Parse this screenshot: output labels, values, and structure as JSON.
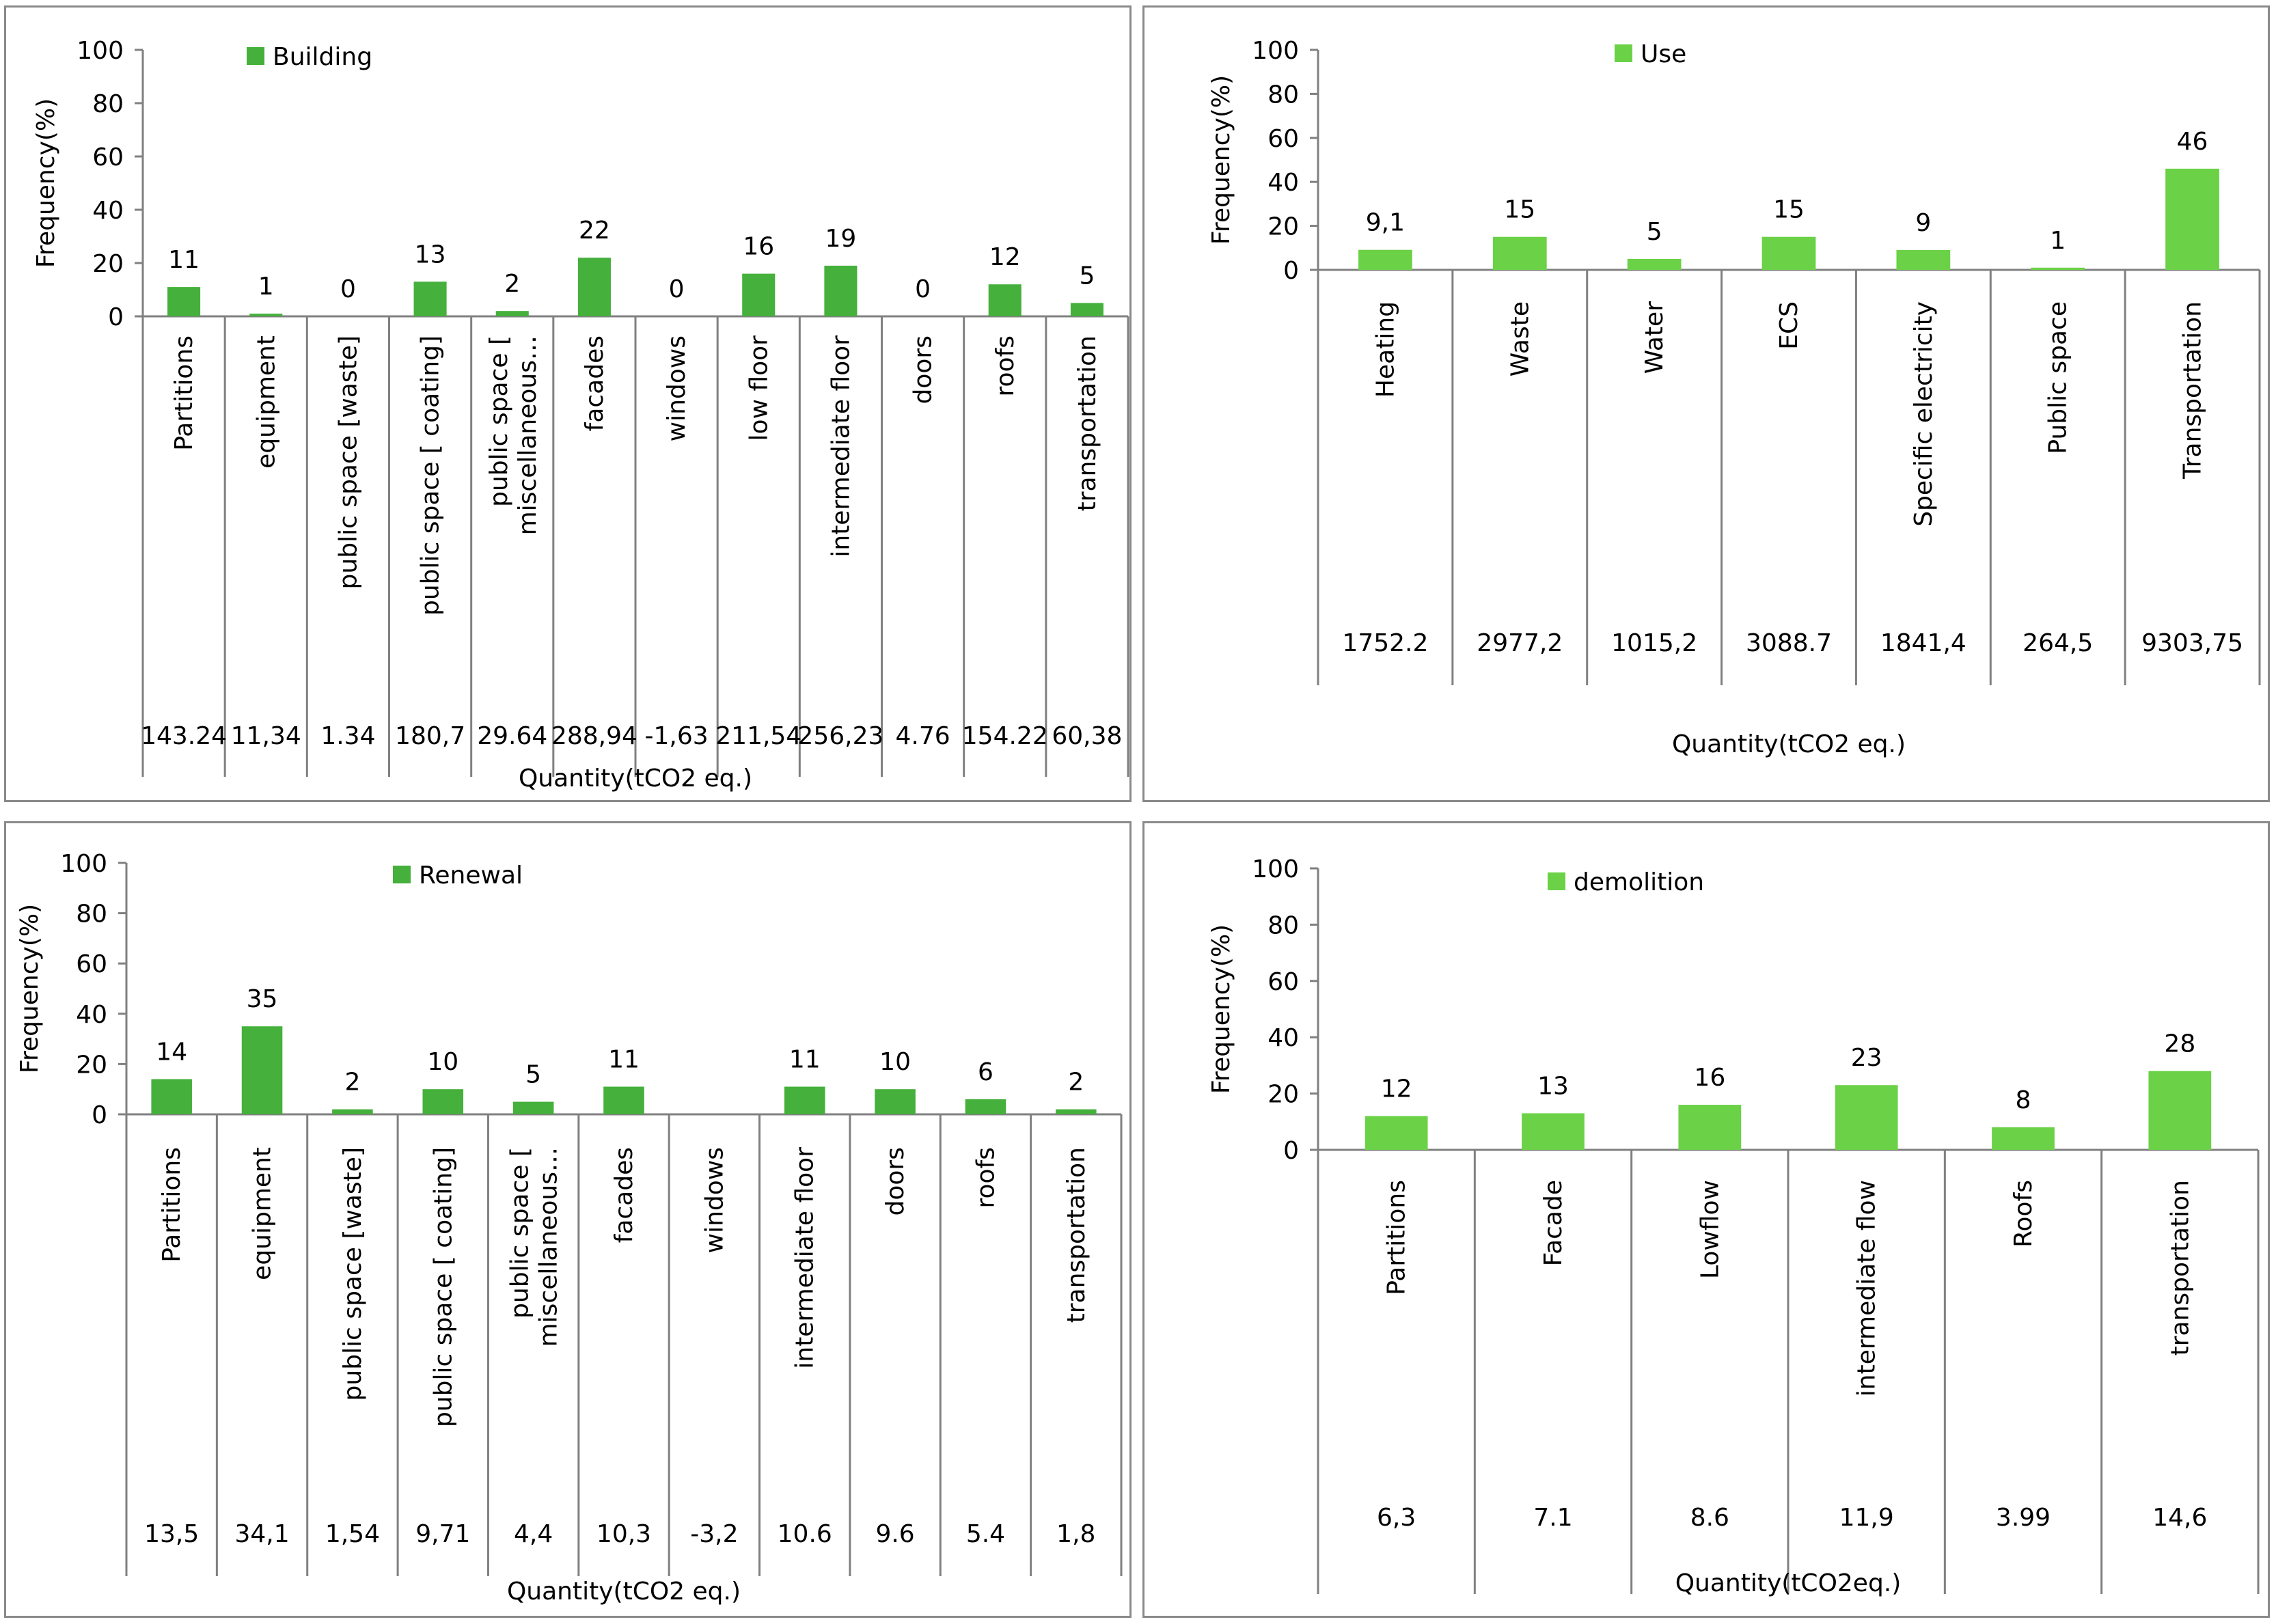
{
  "colors": {
    "building": "#45b03c",
    "use": "#6bd147",
    "renewal": "#45b03c",
    "demolition": "#6bd147",
    "axis": "#808080"
  },
  "chart_data": [
    {
      "type": "bar",
      "legend": "Building",
      "ylabel": "Frequency(%)",
      "xlabel": "Quantity(tCO2 eq.)",
      "ylim": [
        0,
        100
      ],
      "yticks": [
        "0",
        "20",
        "40",
        "60",
        "80",
        "100"
      ],
      "categories": [
        "Partitions",
        "equipment",
        "public space [waste]",
        "public space [ coating]",
        "public space [ miscellaneous…",
        "facades",
        "windows",
        "low floor",
        "intermediate floor",
        "doors",
        "roofs",
        "transportation"
      ],
      "values": [
        11,
        1,
        0,
        13,
        2,
        22,
        0,
        16,
        19,
        0,
        12,
        5
      ],
      "value_labels": [
        "11",
        "1",
        "0",
        "13",
        "2",
        "22",
        "0",
        "16",
        "19",
        "0",
        "12",
        "5"
      ],
      "quantities": [
        "143.24",
        "11,34",
        "1.34",
        "180,7",
        "29.64",
        "288,94",
        "-1,63",
        "211,54",
        "256,23",
        "4.76",
        "154.22",
        "60,38"
      ]
    },
    {
      "type": "bar",
      "legend": "Use",
      "ylabel": "Frequency(%)",
      "xlabel": "Quantity(tCO2 eq.)",
      "ylim": [
        0,
        100
      ],
      "yticks": [
        "0",
        "20",
        "40",
        "60",
        "80",
        "100"
      ],
      "categories": [
        "Heating",
        "Waste",
        "Water",
        "ECS",
        "Specific electricity",
        "Public space",
        "Transportation"
      ],
      "values": [
        9.1,
        15,
        5,
        15,
        9,
        1,
        46
      ],
      "value_labels": [
        "9,1",
        "15",
        "5",
        "15",
        "9",
        "1",
        "46"
      ],
      "quantities": [
        "1752.2",
        "2977,2",
        "1015,2",
        "3088.7",
        "1841,4",
        "264,5",
        "9303,75"
      ]
    },
    {
      "type": "bar",
      "legend": "Renewal",
      "ylabel": "Frequency(%)",
      "xlabel": "Quantity(tCO2 eq.)",
      "ylim": [
        0,
        100
      ],
      "yticks": [
        "0",
        "20",
        "40",
        "60",
        "80",
        "100"
      ],
      "categories": [
        "Partitions",
        "equipment",
        "public space [waste]",
        "public space [ coating]",
        "public space [ miscellaneous…",
        "facades",
        "windows",
        "intermediate floor",
        "doors",
        "roofs",
        "transportation"
      ],
      "values": [
        14,
        35,
        2,
        10,
        5,
        11,
        0,
        11,
        10,
        6,
        2
      ],
      "value_labels": [
        "14",
        "35",
        "2",
        "10",
        "5",
        "11",
        "",
        "11",
        "10",
        "6",
        "2"
      ],
      "quantities": [
        "13,5",
        "34,1",
        "1,54",
        "9,71",
        "4,4",
        "10,3",
        "-3,2",
        "10.6",
        "9.6",
        "5.4",
        "1,8"
      ]
    },
    {
      "type": "bar",
      "legend": "demolition",
      "ylabel": "Frequency(%)",
      "xlabel": "Quantity(tCO2eq.)",
      "ylim": [
        0,
        100
      ],
      "yticks": [
        "0",
        "20",
        "40",
        "60",
        "80",
        "100"
      ],
      "categories": [
        "Partitions",
        "Facade",
        "Lowflow",
        "intermediate flow",
        "Roofs",
        "transportation"
      ],
      "values": [
        12,
        13,
        16,
        23,
        8,
        28
      ],
      "value_labels": [
        "12",
        "13",
        "16",
        "23",
        "8",
        "28"
      ],
      "quantities": [
        "6,3",
        "7.1",
        "8.6",
        "11,9",
        "3.99",
        "14,6"
      ]
    }
  ]
}
